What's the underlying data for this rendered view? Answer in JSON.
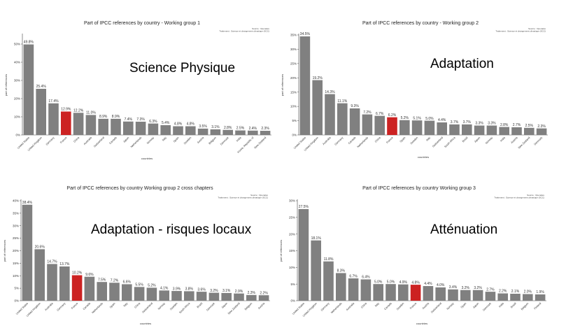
{
  "chart_data": [
    {
      "type": "bar",
      "title": "Part of IPCC references by country - Working group 1",
      "source_lines": [
        "Source : Openalex",
        "Traitement : Science et changement climatique (SCC)"
      ],
      "annotation": "Science Physique",
      "xlabel": "countries",
      "ylabel": "part of references",
      "ylim": [
        0,
        55
      ],
      "yticks": [
        0,
        10,
        20,
        30,
        40,
        50
      ],
      "tick_format": "%",
      "grid": false,
      "highlight_category": "France",
      "highlight_color": "#cc2222",
      "bar_color": "#808080",
      "categories": [
        "United States",
        "United Kingdom",
        "Germany",
        "France",
        "China",
        "Australia",
        "Switzerland",
        "Canada",
        "Japan",
        "Netherlands",
        "Norway",
        "Italy",
        "Spain",
        "Sweden",
        "Austria",
        "Belgium",
        "Denmark",
        "India",
        "Korea, Republic of",
        "New Zealand"
      ],
      "values": [
        49.8,
        25.4,
        17.4,
        12.9,
        12.2,
        11.0,
        8.9,
        8.9,
        7.4,
        7.3,
        6.3,
        5.4,
        4.8,
        4.8,
        3.5,
        3.1,
        2.8,
        2.5,
        2.4,
        2.3
      ],
      "labels": [
        "49.8%",
        "25.4%",
        "17.4%",
        "12.9%",
        "12.2%",
        "11.0%",
        "8.9%",
        "8.9%",
        "7.4%",
        "7.3%",
        "6.3%",
        "5.4%",
        "4.8%",
        "4.8%",
        "3.5%",
        "3.1%",
        "2.8%",
        "2.5%",
        "2.4%",
        "2.3%"
      ]
    },
    {
      "type": "bar",
      "title": "Part of IPCC references by country - Working group 2",
      "source_lines": [
        "Source : Openalex",
        "Traitement : Science et changement climatique (SCC)"
      ],
      "annotation": "Adaptation",
      "xlabel": "countries",
      "ylabel": "part of references",
      "ylim": [
        0,
        35
      ],
      "yticks": [
        0,
        5,
        10,
        15,
        20,
        25,
        30,
        35
      ],
      "tick_format": "%",
      "grid": false,
      "highlight_category": "France",
      "highlight_color": "#cc2222",
      "bar_color": "#808080",
      "categories": [
        "United States",
        "United Kingdom",
        "Australia",
        "Germany",
        "Canada",
        "Netherlands",
        "China",
        "France",
        "Spain",
        "Sweden",
        "Italy",
        "Switzerland",
        "South Africa",
        "Brazil",
        "Japan",
        "Norway",
        "India",
        "Austria",
        "New Zealand",
        "Denmark"
      ],
      "values": [
        34.5,
        19.2,
        14.3,
        11.1,
        9.3,
        7.2,
        6.7,
        6.2,
        5.2,
        5.1,
        5.0,
        4.4,
        3.7,
        3.7,
        3.3,
        3.3,
        2.8,
        2.7,
        2.5,
        2.3
      ],
      "labels": [
        "34.5%",
        "19.2%",
        "14.3%",
        "11.1%",
        "9.3%",
        "7.2%",
        "6.7%",
        "6.2%",
        "5.2%",
        "5.1%",
        "5.0%",
        "4.4%",
        "3.7%",
        "3.7%",
        "3.3%",
        "3.3%",
        "2.8%",
        "2.7%",
        "2.5%",
        "2.3%"
      ]
    },
    {
      "type": "bar",
      "title": "Part of IPCC references by country   Working group 2 cross chapters",
      "source_lines": [
        "Source : Openalex",
        "Traitement : Science et changement climatique (SCC)"
      ],
      "annotation": "Adaptation - risques locaux",
      "xlabel": "countries",
      "ylabel": "part of references",
      "ylim": [
        0,
        40
      ],
      "yticks": [
        0,
        5,
        10,
        15,
        20,
        25,
        30,
        35,
        40
      ],
      "tick_format": "%",
      "grid": false,
      "highlight_category": "France",
      "highlight_color": "#cc2222",
      "bar_color": "#808080",
      "categories": [
        "United States",
        "United Kingdom",
        "Australia",
        "Germany",
        "France",
        "Canada",
        "Netherlands",
        "Spain",
        "Italy",
        "China",
        "Switzerland",
        "Norway",
        "Sweden",
        "South Africa",
        "Brazil",
        "Denmark",
        "Japan",
        "New Zealand",
        "Belgium",
        "Austria"
      ],
      "values": [
        38.4,
        20.6,
        14.7,
        13.7,
        10.2,
        9.6,
        7.5,
        7.2,
        6.6,
        5.5,
        5.2,
        4.1,
        3.9,
        3.8,
        3.6,
        3.2,
        3.1,
        2.9,
        2.3,
        2.2
      ],
      "labels": [
        "38.4%",
        "20.6%",
        "14.7%",
        "13.7%",
        "10.2%",
        "9.6%",
        "7.5%",
        "7.2%",
        "6.6%",
        "5.5%",
        "5.2%",
        "4.1%",
        "3.9%",
        "3.8%",
        "3.6%",
        "3.2%",
        "3.1%",
        "2.9%",
        "2.3%",
        "2.2%"
      ]
    },
    {
      "type": "bar",
      "title": "Part of IPCC references by country   Working group 3",
      "source_lines": [
        "Source : Openalex",
        "Traitement : Science et changement climatique (SCC)"
      ],
      "annotation": "Atténuation",
      "xlabel": "countries",
      "ylabel": "part of references",
      "ylim": [
        0,
        30
      ],
      "yticks": [
        0,
        5,
        10,
        15,
        20,
        25,
        30
      ],
      "tick_format": "%",
      "grid": false,
      "highlight_category": "France",
      "highlight_color": "#cc2222",
      "bar_color": "#808080",
      "categories": [
        "United States",
        "United Kingdom",
        "Germany",
        "Netherlands",
        "Australia",
        "China",
        "Italy",
        "Canada",
        "Sweden",
        "France",
        "Austria",
        "Switzerland",
        "Norway",
        "Spain",
        "Japan",
        "Denmark",
        "India",
        "Brazil",
        "Belgium",
        "Finland"
      ],
      "values": [
        27.5,
        18.1,
        11.8,
        8.3,
        6.7,
        6.4,
        5.0,
        5.0,
        4.9,
        4.8,
        4.4,
        4.0,
        3.4,
        3.2,
        3.2,
        2.7,
        2.2,
        2.1,
        2.0,
        1.9
      ],
      "labels": [
        "27.5%",
        "18.1%",
        "11.8%",
        "8.3%",
        "6.7%",
        "6.4%",
        "5.0%",
        "5.0%",
        "4.9%",
        "4.8%",
        "4.4%",
        "4.0%",
        "3.4%",
        "3.2%",
        "3.2%",
        "2.7%",
        "2.2%",
        "2.1%",
        "2.0%",
        "1.9%"
      ]
    }
  ]
}
